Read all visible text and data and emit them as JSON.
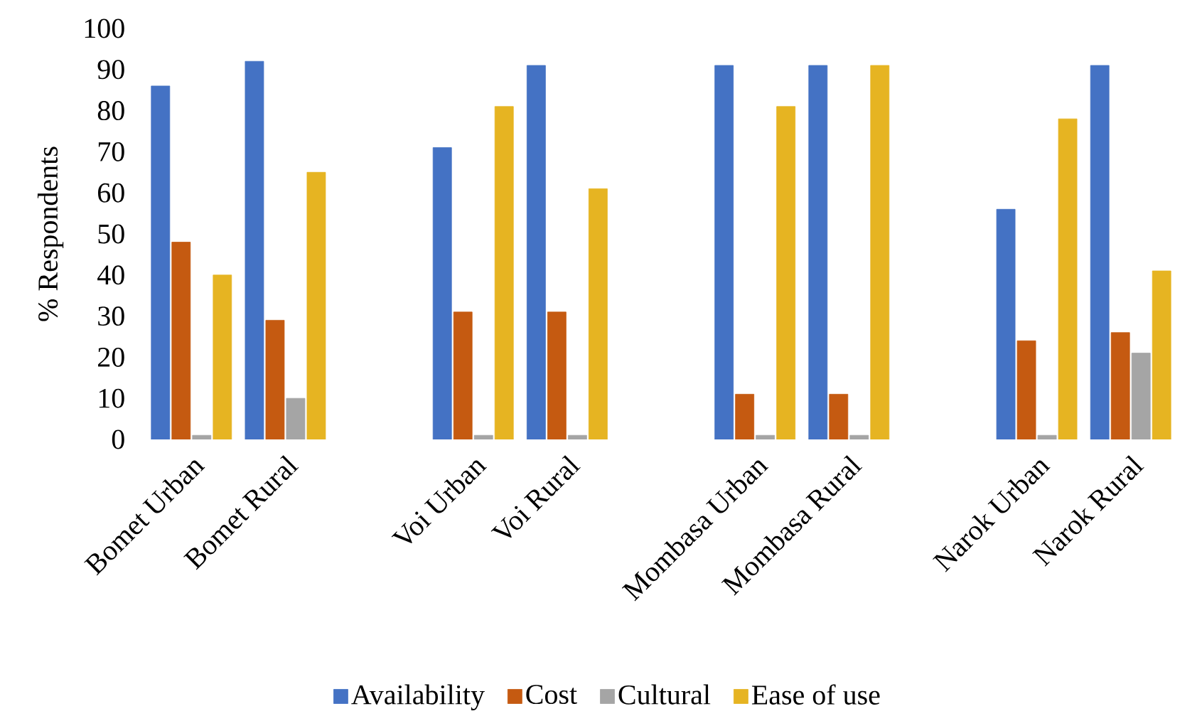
{
  "chart_data": {
    "type": "bar",
    "ylabel": "% Respondents",
    "categories": [
      "Bomet Urban",
      "Bomet Rural",
      null,
      "Voi Urban",
      "Voi Rural",
      null,
      "Mombasa Urban",
      "Mombasa Rural",
      null,
      "Narok Urban",
      "Narok Rural"
    ],
    "series": [
      {
        "name": "Availability",
        "color": "#4472c4",
        "values": [
          86,
          92,
          null,
          71,
          91,
          null,
          91,
          91,
          null,
          56,
          91
        ]
      },
      {
        "name": "Cost",
        "color": "#c55a11",
        "values": [
          48,
          29,
          null,
          31,
          31,
          null,
          11,
          11,
          null,
          24,
          26
        ]
      },
      {
        "name": "Cultural",
        "color": "#a5a5a5",
        "values": [
          1,
          10,
          null,
          1,
          1,
          null,
          1,
          1,
          null,
          1,
          21
        ]
      },
      {
        "name": "Ease of use",
        "color": "#e6b422",
        "values": [
          40,
          65,
          null,
          81,
          61,
          null,
          81,
          91,
          null,
          78,
          41
        ]
      }
    ],
    "ylim": [
      0,
      100
    ],
    "yticks": [
      0,
      10,
      20,
      30,
      40,
      50,
      60,
      70,
      80,
      90,
      100
    ],
    "grid": false,
    "legend": "bottom"
  }
}
